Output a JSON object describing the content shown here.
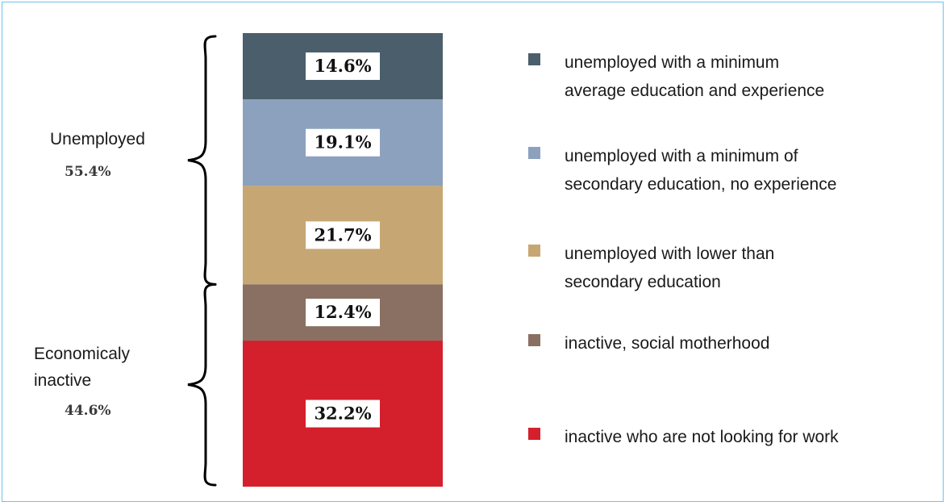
{
  "chart_data": {
    "type": "bar",
    "subtype": "stacked-100",
    "series": [
      {
        "name": "unemployed with a minimum average education and experience",
        "value": 14.6,
        "label": "14.6%",
        "color": "#4a5f6b",
        "legend_lines": [
          "unemployed with a minimum",
          "average education and experience"
        ]
      },
      {
        "name": "unemployed with a minimum of secondary education, no experience",
        "value": 19.1,
        "label": "19.1%",
        "color": "#8ca1bd",
        "legend_lines": [
          "unemployed with a minimum of",
          "secondary education, no experience"
        ]
      },
      {
        "name": "unemployed with lower than secondary education",
        "value": 21.7,
        "label": "21.7%",
        "color": "#c6a773",
        "legend_lines": [
          "unemployed with lower than",
          "secondary education"
        ]
      },
      {
        "name": "inactive, social motherhood",
        "value": 12.4,
        "label": "12.4%",
        "color": "#8a7062",
        "legend_lines": [
          "inactive, social motherhood"
        ]
      },
      {
        "name": "inactive who are not looking for work",
        "value": 32.2,
        "label": "32.2%",
        "color": "#d4202c",
        "legend_lines": [
          "inactive who are not looking for work"
        ]
      }
    ],
    "groups": [
      {
        "label_lines": [
          "Unemployed"
        ],
        "value_label": "55.4%",
        "members": [
          0,
          1,
          2
        ]
      },
      {
        "label_lines": [
          "Economicaly",
          "inactive"
        ],
        "value_label": "44.6%",
        "members": [
          3,
          4
        ]
      }
    ],
    "legend_position": "right",
    "grid": false
  }
}
